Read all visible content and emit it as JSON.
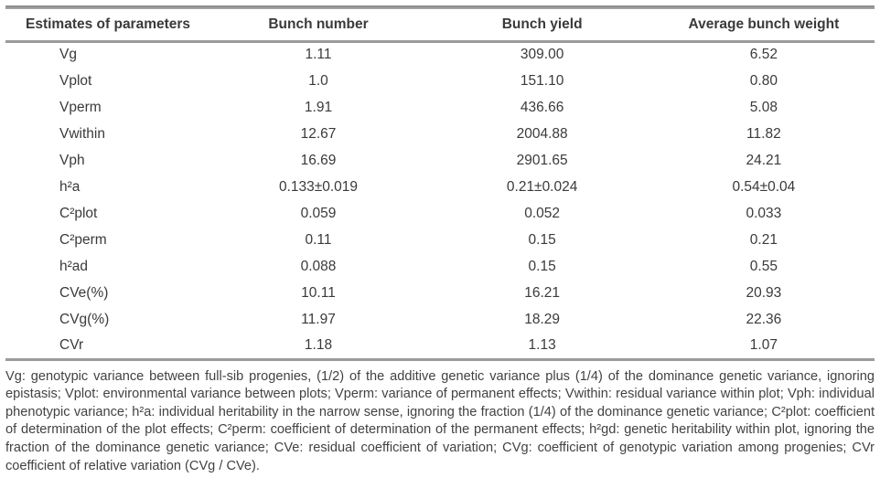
{
  "colors": {
    "rule": "#8f8f8f",
    "text": "#3a3a3a"
  },
  "table": {
    "headers": [
      "Estimates of parameters",
      "Bunch number",
      "Bunch yield",
      "Average bunch weight"
    ],
    "rows": [
      [
        "Vg",
        "1.11",
        "309.00",
        "6.52"
      ],
      [
        "Vplot",
        "1.0",
        "151.10",
        "0.80"
      ],
      [
        "Vperm",
        "1.91",
        "436.66",
        "5.08"
      ],
      [
        "Vwithin",
        "12.67",
        "2004.88",
        "11.82"
      ],
      [
        "Vph",
        "16.69",
        "2901.65",
        "24.21"
      ],
      [
        "h²a",
        "0.133±0.019",
        "0.21±0.024",
        "0.54±0.04"
      ],
      [
        "C²plot",
        "0.059",
        "0.052",
        "0.033"
      ],
      [
        "C²perm",
        "0.11",
        "0.15",
        "0.21"
      ],
      [
        "h²ad",
        "0.088",
        "0.15",
        "0.55"
      ],
      [
        "CVe(%)",
        "10.11",
        "16.21",
        "20.93"
      ],
      [
        "CVg(%)",
        "11.97",
        "18.29",
        "22.36"
      ],
      [
        "CVr",
        "1.18",
        "1.13",
        "1.07"
      ]
    ]
  },
  "footnote": "Vg: genotypic variance between full-sib progenies, (1/2) of the additive genetic variance plus (1/4) of the dominance genetic variance, ignoring epistasis; Vplot: environmental variance between plots; Vperm: variance of permanent effects; Vwithin: residual variance within plot; Vph: individual phenotypic variance; h²a: individual heritability in the narrow sense, ignoring the fraction (1/4) of the dominance genetic variance; C²plot: coefficient of determination of the plot effects; C²perm: coefficient of determination of the permanent effects; h²gd: genetic heritability within plot, ignoring the fraction of the dominance genetic variance; CVe: residual coefficient of variation; CVg: coefficient of genotypic variation among progenies; CVr coefficient of relative variation (CVg / CVe)."
}
